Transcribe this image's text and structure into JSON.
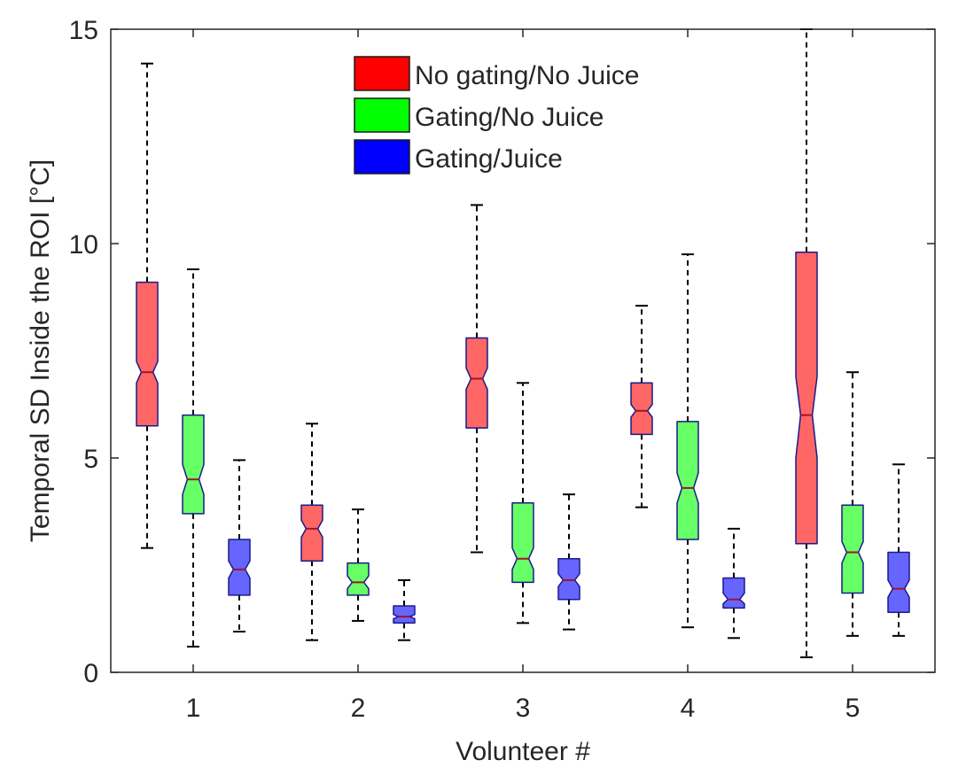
{
  "chart_data": {
    "type": "boxplot",
    "notched": true,
    "xlabel": "Volunteer #",
    "ylabel": "Temporal SD Inside the ROI  [°C]",
    "ylim": [
      0,
      15
    ],
    "yticks": [
      0,
      5,
      10,
      15
    ],
    "categories": [
      "1",
      "2",
      "3",
      "4",
      "5"
    ],
    "legend_position": "top-center",
    "series": [
      {
        "name": "No gating/No Juice",
        "legend_color": "#ff0000",
        "box_color": "#ff6666",
        "boxes": [
          {
            "whisker_low": 2.9,
            "q1": 5.75,
            "median": 7.0,
            "q3": 9.1,
            "whisker_high": 14.2,
            "notch_low": 6.75,
            "notch_high": 7.25
          },
          {
            "whisker_low": 0.75,
            "q1": 2.6,
            "median": 3.35,
            "q3": 3.9,
            "whisker_high": 5.8,
            "notch_low": 3.15,
            "notch_high": 3.55
          },
          {
            "whisker_low": 2.8,
            "q1": 5.7,
            "median": 6.85,
            "q3": 7.8,
            "whisker_high": 10.9,
            "notch_low": 6.6,
            "notch_high": 7.1
          },
          {
            "whisker_low": 3.85,
            "q1": 5.55,
            "median": 6.1,
            "q3": 6.75,
            "whisker_high": 8.55,
            "notch_low": 5.95,
            "notch_high": 6.25
          },
          {
            "whisker_low": 0.35,
            "q1": 3.0,
            "median": 6.0,
            "q3": 9.8,
            "whisker_high": 15.0,
            "notch_low": 5.0,
            "notch_high": 6.9
          }
        ]
      },
      {
        "name": "Gating/No Juice",
        "legend_color": "#00ff00",
        "box_color": "#66ff66",
        "boxes": [
          {
            "whisker_low": 0.6,
            "q1": 3.7,
            "median": 4.5,
            "q3": 6.0,
            "whisker_high": 9.4,
            "notch_low": 4.15,
            "notch_high": 4.85
          },
          {
            "whisker_low": 1.2,
            "q1": 1.8,
            "median": 2.1,
            "q3": 2.55,
            "whisker_high": 3.8,
            "notch_low": 1.95,
            "notch_high": 2.25
          },
          {
            "whisker_low": 1.15,
            "q1": 2.1,
            "median": 2.65,
            "q3": 3.95,
            "whisker_high": 6.75,
            "notch_low": 2.4,
            "notch_high": 2.9
          },
          {
            "whisker_low": 1.05,
            "q1": 3.1,
            "median": 4.3,
            "q3": 5.85,
            "whisker_high": 9.75,
            "notch_low": 3.95,
            "notch_high": 4.65
          },
          {
            "whisker_low": 0.85,
            "q1": 1.85,
            "median": 2.8,
            "q3": 3.9,
            "whisker_high": 7.0,
            "notch_low": 2.55,
            "notch_high": 3.05
          }
        ]
      },
      {
        "name": "Gating/Juice",
        "legend_color": "#0000ff",
        "box_color": "#6666ff",
        "boxes": [
          {
            "whisker_low": 0.95,
            "q1": 1.8,
            "median": 2.4,
            "q3": 3.1,
            "whisker_high": 4.95,
            "notch_low": 2.2,
            "notch_high": 2.6
          },
          {
            "whisker_low": 0.75,
            "q1": 1.15,
            "median": 1.3,
            "q3": 1.55,
            "whisker_high": 2.15,
            "notch_low": 1.25,
            "notch_high": 1.35
          },
          {
            "whisker_low": 1.0,
            "q1": 1.7,
            "median": 2.15,
            "q3": 2.65,
            "whisker_high": 4.15,
            "notch_low": 2.0,
            "notch_high": 2.3
          },
          {
            "whisker_low": 0.8,
            "q1": 1.5,
            "median": 1.7,
            "q3": 2.2,
            "whisker_high": 3.35,
            "notch_low": 1.6,
            "notch_high": 1.85
          },
          {
            "whisker_low": 0.85,
            "q1": 1.4,
            "median": 1.95,
            "q3": 2.8,
            "whisker_high": 4.85,
            "notch_low": 1.75,
            "notch_high": 2.15
          }
        ]
      }
    ]
  }
}
